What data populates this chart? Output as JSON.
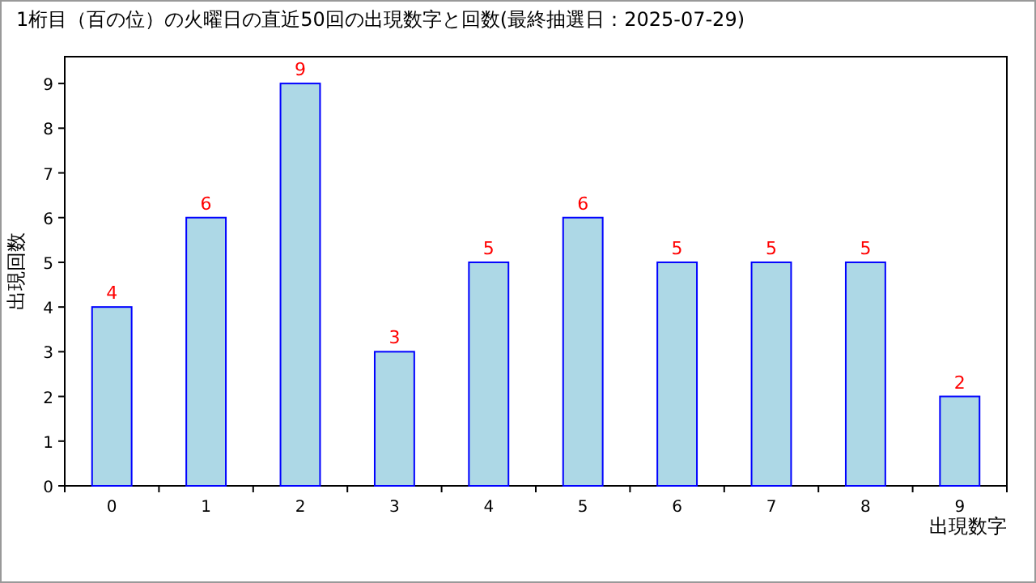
{
  "chart_data": {
    "type": "bar",
    "title": "1桁目（百の位）の火曜日の直近50回の出現数字と回数(最終抽選日：2025-07-29)",
    "xlabel": "出現数字",
    "ylabel": "出現回数",
    "categories": [
      "0",
      "1",
      "2",
      "3",
      "4",
      "5",
      "6",
      "7",
      "8",
      "9"
    ],
    "values": [
      4,
      6,
      9,
      3,
      5,
      6,
      5,
      5,
      5,
      2
    ],
    "color": "#add8e6",
    "data_labels": true,
    "ylim": [
      0,
      9.6
    ],
    "yticks": [
      0,
      1,
      2,
      3,
      4,
      5,
      6,
      7,
      8,
      9
    ]
  }
}
